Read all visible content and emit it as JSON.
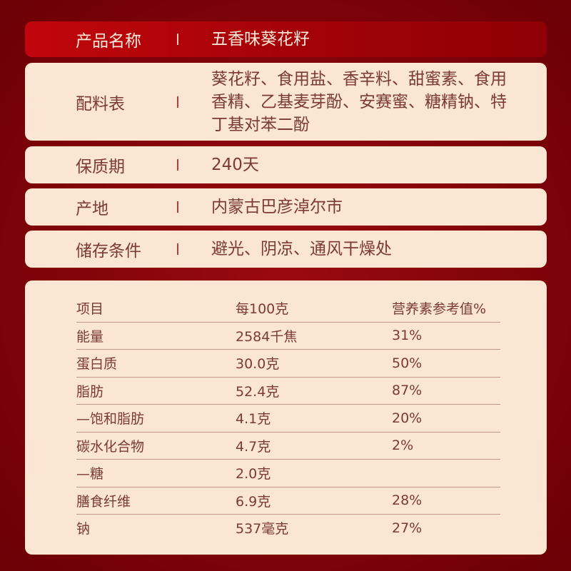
{
  "info_rows": [
    {
      "label": "产品名称",
      "value": "五香味葵花籽"
    },
    {
      "label": "配料表",
      "value": "葵花籽、食用盐、香辛料、甜蜜素、食用香精、乙基麦芽酚、安赛蜜、糖精钠、特丁基对苯二酚"
    },
    {
      "label": "保质期",
      "value": "240天"
    },
    {
      "label": "产地",
      "value": "内蒙古巴彦淖尔市"
    },
    {
      "label": "储存条件",
      "value": "避光、阴凉、通风干燥处"
    }
  ],
  "nutrition": {
    "headers": [
      "项目",
      "每100克",
      "营养素参考值%"
    ],
    "rows": [
      [
        "能量",
        "2584千焦",
        "31%"
      ],
      [
        "蛋白质",
        "30.0克",
        "50%"
      ],
      [
        "脂肪",
        "52.4克",
        "87%"
      ],
      [
        "—饱和脂肪",
        "4.1克",
        "20%"
      ],
      [
        "碳水化合物",
        "4.7克",
        "2%"
      ],
      [
        "—糖",
        "2.0克",
        ""
      ],
      [
        "膳食纤维",
        "6.9克",
        "28%"
      ],
      [
        "钠",
        "537毫克",
        "27%"
      ]
    ]
  }
}
